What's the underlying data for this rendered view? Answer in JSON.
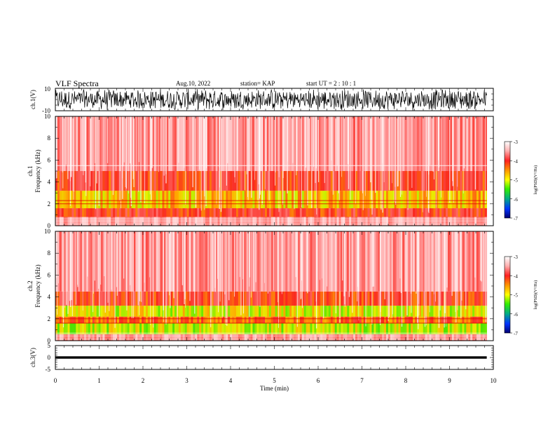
{
  "header": {
    "title": "VLF Spectra",
    "date": "Aug.10, 2022",
    "station": "station= KAP",
    "start": "start  UT =   2 : 10 : 1"
  },
  "chart_data": [
    {
      "type": "line",
      "panel": "ch1-waveform",
      "ylabel": "ch.1(V)",
      "ylim": [
        -10,
        10
      ],
      "yticks": [
        "10",
        "-10"
      ],
      "x_range_min": [
        0,
        9.85
      ],
      "description_values": {
        "y_min": -10,
        "y_max": 10
      },
      "color": "#000000"
    },
    {
      "type": "heatmap",
      "panel": "ch1-spectrogram",
      "ylabel": "ch.1  Frequency (kHz)",
      "ylim": [
        0,
        10
      ],
      "yticks": [
        "0",
        "2",
        "4",
        "6",
        "8",
        "10"
      ],
      "colorbar": {
        "label": "log(PSD)(V²/Hz)",
        "ticks": [
          "-3",
          "-4",
          "-5",
          "-6",
          "-7"
        ],
        "range": [
          -7,
          -3
        ]
      },
      "bands_khz": [
        {
          "from": 0,
          "to": 0.8,
          "level": -3.5
        },
        {
          "from": 0.8,
          "to": 1.6,
          "level": -4.0
        },
        {
          "from": 1.6,
          "to": 3.2,
          "level": -4.6
        },
        {
          "from": 3.2,
          "to": 5.0,
          "level": -4.0
        },
        {
          "from": 5.0,
          "to": 10,
          "level": -3.5
        }
      ],
      "lines_khz": [
        5.5,
        2.3,
        2.0
      ]
    },
    {
      "type": "heatmap",
      "panel": "ch2-spectrogram",
      "ylabel": "ch.2  Frequency (kHz)",
      "ylim": [
        0,
        10
      ],
      "yticks": [
        "0",
        "2",
        "4",
        "6",
        "8",
        "10"
      ],
      "colorbar": {
        "label": "log(PSD)(V²/Hz)",
        "ticks": [
          "-3",
          "-4",
          "-5",
          "-6",
          "-7"
        ],
        "range": [
          -7,
          -3
        ]
      },
      "bands_khz": [
        {
          "from": 0,
          "to": 0.6,
          "level": -3.6
        },
        {
          "from": 0.6,
          "to": 1.6,
          "level": -4.9
        },
        {
          "from": 1.6,
          "to": 2.2,
          "level": -4.2
        },
        {
          "from": 2.2,
          "to": 3.2,
          "level": -4.8
        },
        {
          "from": 3.2,
          "to": 4.5,
          "level": -4.0
        },
        {
          "from": 4.5,
          "to": 10,
          "level": -3.5
        }
      ],
      "lines_khz": [
        2.0,
        1.6
      ]
    },
    {
      "type": "line",
      "panel": "ch3-waveform",
      "ylabel": "ch.3(V)",
      "ylim": [
        -5,
        5
      ],
      "yticks": [
        "5",
        "0",
        "-5"
      ],
      "level_band": [
        -0.5,
        0.5
      ],
      "color": "#000000"
    }
  ],
  "xaxis": {
    "xlabel": "Time  (min)",
    "xlim": [
      0,
      10
    ],
    "xticks": [
      "0",
      "1",
      "2",
      "3",
      "4",
      "5",
      "6",
      "7",
      "8",
      "9",
      "10"
    ],
    "data_end_min": 9.85
  },
  "colors": {
    "background": "#ffffff",
    "axes": "#000000",
    "waveform": "#000000"
  }
}
